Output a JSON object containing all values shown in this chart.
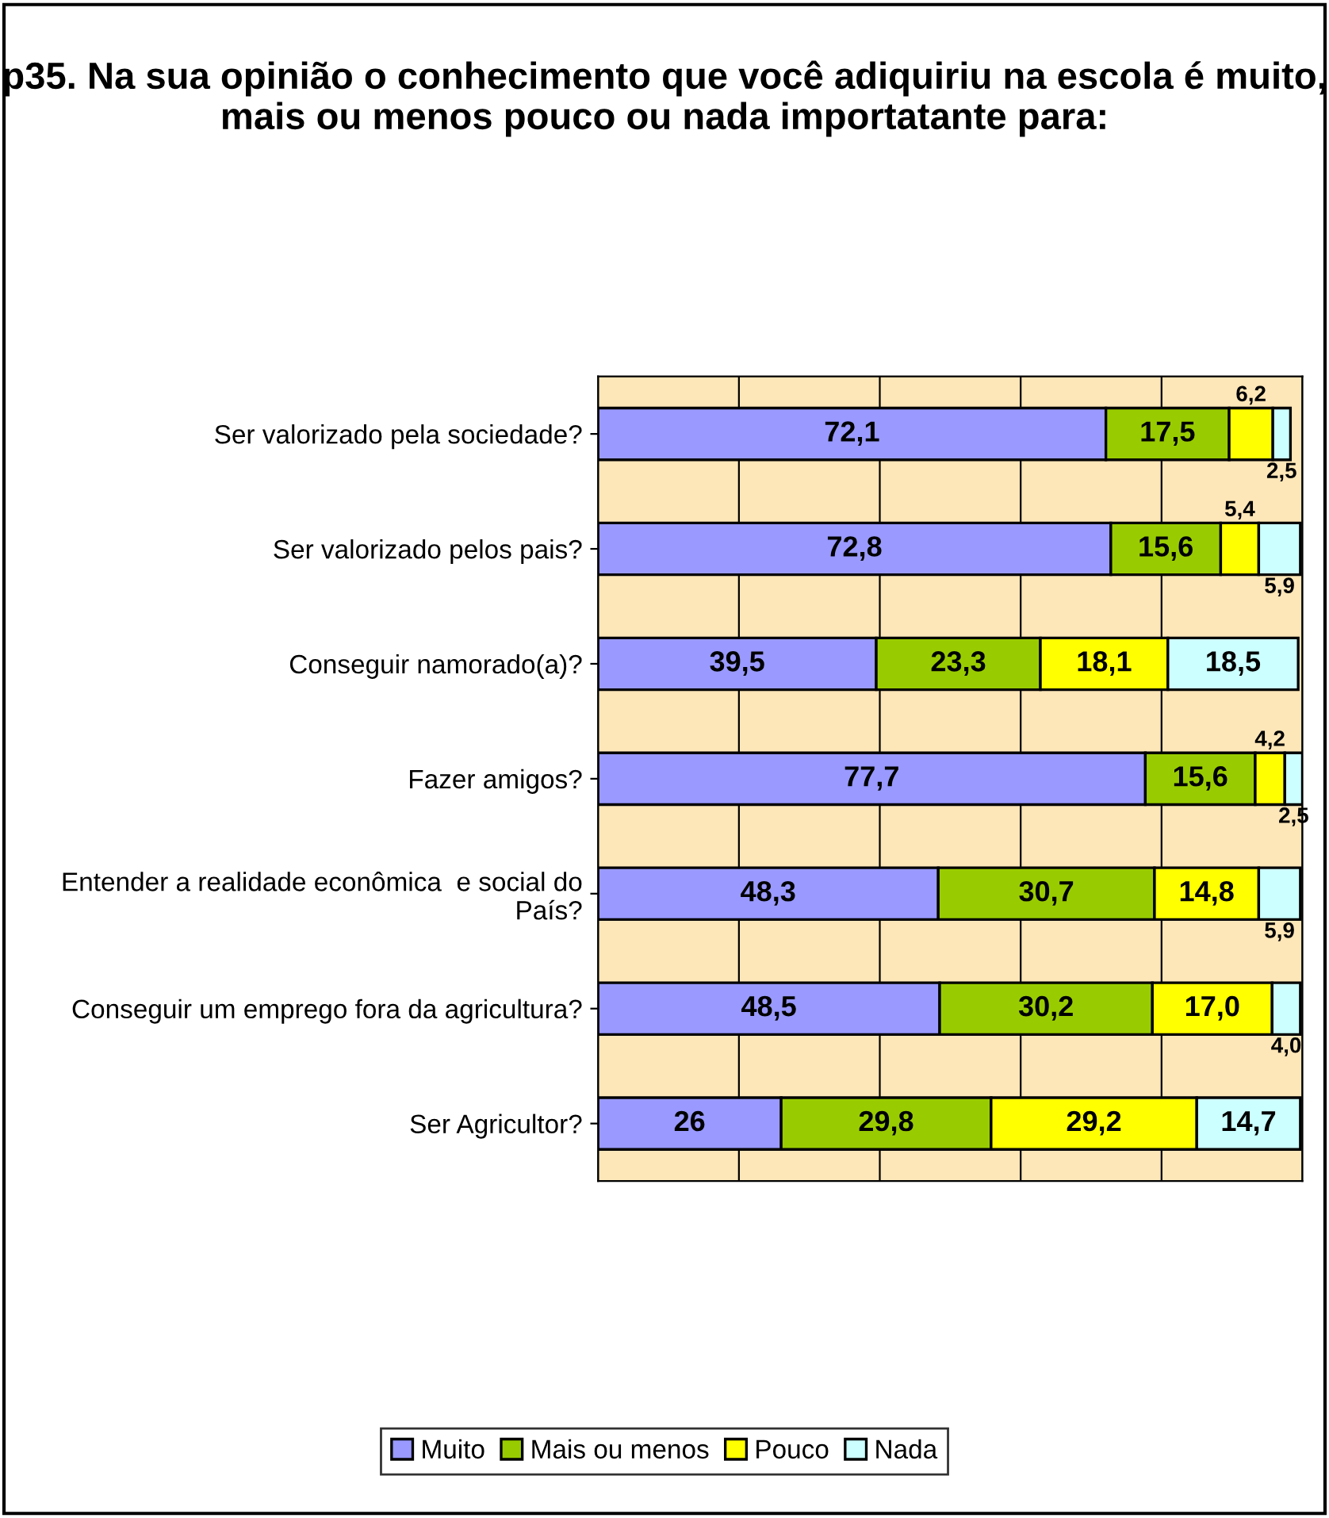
{
  "chart_data": {
    "type": "bar",
    "orientation": "horizontal",
    "stacked": true,
    "title": "p35. Na sua opinião o conhecimento que você adiquiriu na escola é muito, mais ou menos pouco ou nada importatante para:",
    "categories": [
      "Ser valorizado pela sociedade?",
      "Ser valorizado pelos pais?",
      "Conseguir namorado(a)?",
      "Fazer amigos?",
      "Entender a realidade econômica  e social do País?",
      "Conseguir um emprego fora da agricultura?",
      "Ser Agricultor?"
    ],
    "series": [
      {
        "name": "Muito",
        "color": "#9999ff",
        "values": [
          72.1,
          72.8,
          39.5,
          77.7,
          48.3,
          48.5,
          26
        ],
        "value_labels": [
          "72,1",
          "72,8",
          "39,5",
          "77,7",
          "48,3",
          "48,5",
          "26"
        ]
      },
      {
        "name": "Mais ou menos",
        "color": "#99cc00",
        "values": [
          17.5,
          15.6,
          23.3,
          15.6,
          30.7,
          30.2,
          29.8
        ],
        "value_labels": [
          "17,5",
          "15,6",
          "23,3",
          "15,6",
          "30,7",
          "30,2",
          "29,8"
        ]
      },
      {
        "name": "Pouco",
        "color": "#ffff00",
        "values": [
          6.2,
          5.4,
          18.1,
          4.2,
          14.8,
          17.0,
          29.2
        ],
        "value_labels": [
          "6,2",
          "5,4",
          "18,1",
          "4,2",
          "14,8",
          "17,0",
          "29,2"
        ]
      },
      {
        "name": "Nada",
        "color": "#ccffff",
        "values": [
          2.5,
          5.9,
          18.5,
          2.5,
          5.9,
          4.0,
          14.7
        ],
        "value_labels": [
          "2,5",
          "5,9",
          "18,5",
          "2,5",
          "5,9",
          "4,0",
          "14,7"
        ]
      }
    ],
    "xlim": [
      0,
      100
    ],
    "xticks": [
      {
        "value": 0,
        "label": null
      },
      {
        "value": 20,
        "label": null
      },
      {
        "value": 40,
        "label": null
      },
      {
        "value": 60,
        "label": null
      },
      {
        "value": 80,
        "label": null
      },
      {
        "value": 100,
        "label": null
      }
    ],
    "grid": "x",
    "legend": "bottom"
  }
}
